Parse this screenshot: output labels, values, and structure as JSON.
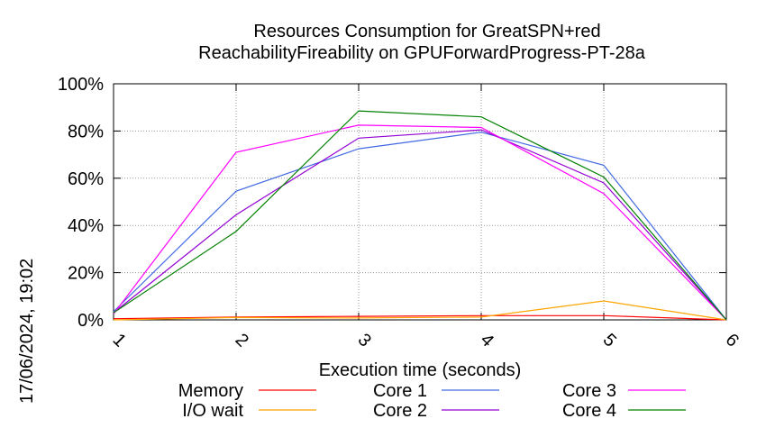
{
  "chart_data": {
    "type": "line",
    "title": "Resources Consumption for GreatSPN+red",
    "subtitle": "ReachabilityFireability on GPUForwardProgress-PT-28a",
    "xlabel": "Execution time (seconds)",
    "ylabel": "",
    "timestamp": "17/06/2024, 19:02",
    "x": [
      1,
      2,
      3,
      4,
      5,
      6
    ],
    "xlim": [
      1,
      6
    ],
    "ylim": [
      0,
      100
    ],
    "x_ticks": [
      "1",
      "2",
      "3",
      "4",
      "5",
      "6"
    ],
    "y_ticks": [
      "0%",
      "20%",
      "40%",
      "60%",
      "80%",
      "100%"
    ],
    "grid": true,
    "legend_position": "bottom",
    "series": [
      {
        "name": "Memory",
        "color": "#ff0000",
        "values": [
          0.5,
          1.2,
          1.5,
          1.8,
          1.8,
          0
        ]
      },
      {
        "name": "I/O wait",
        "color": "#ffa500",
        "values": [
          0,
          1.0,
          0.8,
          1.2,
          8.0,
          0
        ]
      },
      {
        "name": "Core 1",
        "color": "#4169e1",
        "values": [
          3.5,
          54.5,
          72.5,
          79.5,
          65.5,
          0
        ]
      },
      {
        "name": "Core 2",
        "color": "#9400d3",
        "values": [
          3.0,
          44.5,
          77.0,
          80.5,
          58.0,
          0
        ]
      },
      {
        "name": "Core 3",
        "color": "#ff00ff",
        "values": [
          2.5,
          71.0,
          82.5,
          81.5,
          53.5,
          0
        ]
      },
      {
        "name": "Core 4",
        "color": "#008000",
        "values": [
          3.0,
          37.5,
          88.5,
          86.0,
          60.5,
          0
        ]
      }
    ]
  }
}
